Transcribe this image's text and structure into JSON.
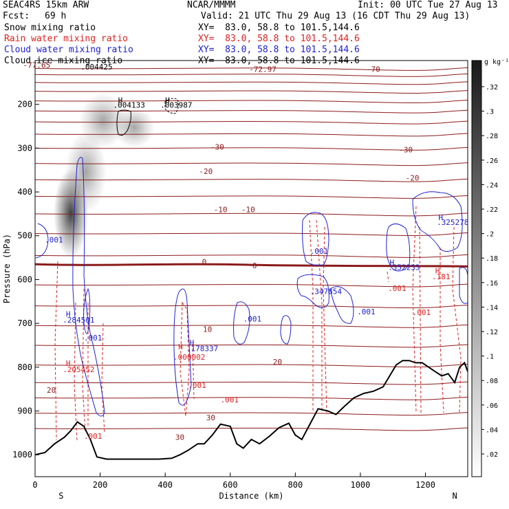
{
  "header": {
    "model": "SEAC4RS 15km ARW",
    "center": "NCAR/MMMM",
    "init": "Init: 00 UTC Tue 27 Aug 13",
    "fcst_label": "Fcst:",
    "fcst_value": "69 h",
    "valid": "Valid: 21 UTC Thu 29 Aug 13 (16 CDT Thu 29 Aug 13)",
    "fields": [
      {
        "name": "Snow mixing ratio",
        "xy": "XY=  83.0, 58.8 to 101.5,144.6",
        "color": "#000000"
      },
      {
        "name": "Rain water mixing ratio",
        "xy": "XY=  83.0, 58.8 to 101.5,144.6",
        "color": "#e02020"
      },
      {
        "name": "Cloud water mixing ratio",
        "xy": "XY=  83.0, 58.8 to 101.5,144.6",
        "color": "#2020d0"
      },
      {
        "name": "Cloud ice mixing ratio",
        "xy": "XY=  83.0, 58.8 to 101.5,144.6",
        "color": "#000000"
      }
    ]
  },
  "chart_data": {
    "type": "cross-section",
    "xlabel": "Distance (km)",
    "ylabel": "Pressure (hPa)",
    "xlim": [
      0,
      1330
    ],
    "ylim": [
      1050,
      100
    ],
    "x_ticks": [
      0,
      200,
      400,
      600,
      800,
      1000,
      1200
    ],
    "y_ticks": [
      200,
      300,
      400,
      500,
      600,
      700,
      800,
      900,
      1000
    ],
    "end_labels": {
      "start": "S",
      "end": "N"
    },
    "colorbar": {
      "unit": "g kg⁻¹",
      "ticks": [
        ".32",
        ".3",
        ".28",
        ".26",
        ".24",
        ".22",
        ".2",
        ".18",
        ".16",
        ".14",
        ".12",
        ".1",
        ".08",
        ".06",
        ".04",
        ".02"
      ]
    },
    "temperature_contour_labels": [
      {
        "text": "-77.65",
        "x": 5,
        "p": 110
      },
      {
        "text": "-72.97",
        "x": 700,
        "p": 120
      },
      {
        "text": "-70",
        "x": 1040,
        "p": 120
      },
      {
        "text": "-30",
        "x": 560,
        "p": 297
      },
      {
        "text": "-30",
        "x": 1140,
        "p": 303
      },
      {
        "text": "-20",
        "x": 525,
        "p": 353
      },
      {
        "text": "-20",
        "x": 1160,
        "p": 368
      },
      {
        "text": "-10",
        "x": 570,
        "p": 440
      },
      {
        "text": "-10",
        "x": 655,
        "p": 440
      },
      {
        "text": "0",
        "x": 520,
        "p": 559
      },
      {
        "text": "0",
        "x": 675,
        "p": 568
      },
      {
        "text": "10",
        "x": 530,
        "p": 713
      },
      {
        "text": "20",
        "x": 745,
        "p": 788
      },
      {
        "text": "20",
        "x": 50,
        "p": 852
      },
      {
        "text": "30",
        "x": 540,
        "p": 915
      },
      {
        "text": "30",
        "x": 445,
        "p": 960
      }
    ],
    "field_labels": [
      {
        "text": "H",
        "x": 255,
        "p": 190,
        "color": "#000000"
      },
      {
        "text": ".004133",
        "x": 240,
        "p": 201,
        "color": "#000000"
      },
      {
        "text": "H",
        "x": 400,
        "p": 190,
        "color": "#000000"
      },
      {
        "text": ".003987",
        "x": 385,
        "p": 201,
        "color": "#000000"
      },
      {
        "text": ".004425",
        "x": 140,
        "p": 114,
        "color": "#000000"
      },
      {
        "text": ".001",
        "x": 30,
        "p": 509,
        "color": "#2020d0"
      },
      {
        "text": "H",
        "x": 95,
        "p": 679,
        "color": "#2020d0"
      },
      {
        "text": ".284501",
        "x": 85,
        "p": 692,
        "color": "#2020d0"
      },
      {
        "text": ".001",
        "x": 150,
        "p": 733,
        "color": "#2020d0"
      },
      {
        "text": "H",
        "x": 95,
        "p": 791,
        "color": "#e02020"
      },
      {
        "text": ".205452",
        "x": 85,
        "p": 805,
        "color": "#e02020"
      },
      {
        "text": "H",
        "x": 440,
        "p": 753,
        "color": "#e02020"
      },
      {
        "text": ".000002",
        "x": 425,
        "p": 777,
        "color": "#e02020"
      },
      {
        "text": "H",
        "x": 475,
        "p": 744,
        "color": "#2020d0"
      },
      {
        "text": ".178337",
        "x": 465,
        "p": 757,
        "color": "#2020d0"
      },
      {
        "text": ".001",
        "x": 470,
        "p": 841,
        "color": "#e02020"
      },
      {
        "text": ".001",
        "x": 570,
        "p": 874,
        "color": "#e02020"
      },
      {
        "text": ".001",
        "x": 640,
        "p": 690,
        "color": "#2020d0"
      },
      {
        "text": ".001",
        "x": 845,
        "p": 535,
        "color": "#2020d0"
      },
      {
        "text": ".347854",
        "x": 845,
        "p": 627,
        "color": "#2020d0"
      },
      {
        "text": ".001",
        "x": 990,
        "p": 673,
        "color": "#2020d0"
      },
      {
        "text": "H",
        "x": 1090,
        "p": 561,
        "color": "#2020d0"
      },
      {
        "text": ".352233",
        "x": 1085,
        "p": 572,
        "color": "#2020d0"
      },
      {
        "text": ".001",
        "x": 1085,
        "p": 620,
        "color": "#e02020"
      },
      {
        "text": ".001",
        "x": 1160,
        "p": 675,
        "color": "#e02020"
      },
      {
        "text": "H",
        "x": 1230,
        "p": 580,
        "color": "#e02020"
      },
      {
        "text": ".181",
        "x": 1220,
        "p": 593,
        "color": "#e02020"
      },
      {
        "text": "H",
        "x": 1240,
        "p": 458,
        "color": "#2020d0"
      },
      {
        "text": ".325278",
        "x": 1235,
        "p": 469,
        "color": "#2020d0"
      },
      {
        "text": ".001",
        "x": 150,
        "p": 957,
        "color": "#e02020"
      }
    ],
    "terrain": {
      "x": [
        0,
        30,
        60,
        90,
        110,
        130,
        150,
        170,
        190,
        220,
        260,
        320,
        380,
        420,
        445,
        470,
        500,
        520,
        545,
        570,
        600,
        620,
        640,
        665,
        690,
        720,
        750,
        780,
        800,
        820,
        845,
        870,
        900,
        925,
        950,
        980,
        1010,
        1040,
        1070,
        1090,
        1110,
        1130,
        1150,
        1170,
        1190,
        1210,
        1230,
        1250,
        1270,
        1290,
        1305,
        1320,
        1330
      ],
      "p": [
        1000,
        995,
        975,
        960,
        945,
        925,
        935,
        965,
        1005,
        1010,
        1010,
        1010,
        1010,
        1008,
        1000,
        990,
        975,
        975,
        955,
        930,
        935,
        975,
        985,
        965,
        975,
        958,
        938,
        928,
        955,
        965,
        930,
        895,
        900,
        908,
        890,
        870,
        860,
        855,
        845,
        820,
        795,
        785,
        785,
        790,
        790,
        800,
        810,
        820,
        815,
        835,
        800,
        790,
        810
      ]
    }
  }
}
